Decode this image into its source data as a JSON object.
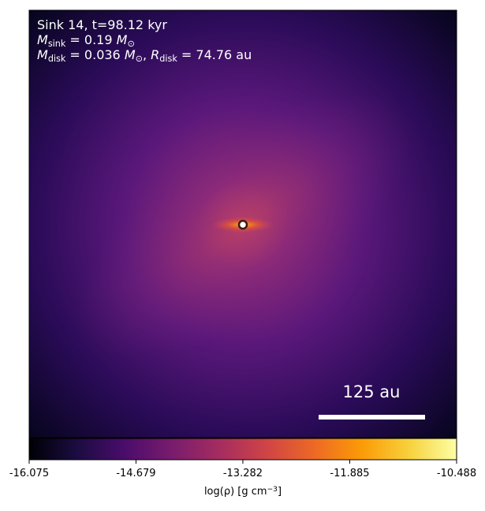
{
  "chart_data": {
    "type": "density_map",
    "annotations": [
      [
        {
          "text": "Sink 14, t=98.12 kyr"
        }
      ],
      [
        {
          "text": "M",
          "italic": true
        },
        {
          "text": "sink",
          "sub": true
        },
        {
          "text": " = 0.19 "
        },
        {
          "text": "M",
          "italic": true
        },
        {
          "text": "⊙",
          "sub": true
        }
      ],
      [
        {
          "text": "M",
          "italic": true
        },
        {
          "text": "disk",
          "sub": true
        },
        {
          "text": " = 0.036 "
        },
        {
          "text": "M",
          "italic": true
        },
        {
          "text": "⊙",
          "sub": true
        },
        {
          "text": ", "
        },
        {
          "text": "R",
          "italic": true
        },
        {
          "text": "disk",
          "sub": true
        },
        {
          "text": " = 74.76 au"
        }
      ]
    ],
    "scale_bar": {
      "label": "125 au"
    },
    "colorbar": {
      "label": [
        {
          "text": "log(ρ) [g cm"
        },
        {
          "text": "−3",
          "sup": true
        },
        {
          "text": "]"
        }
      ],
      "clim": [
        -16.075,
        -10.488
      ],
      "ticks": [
        -16.075,
        -14.679,
        -13.282,
        -11.885,
        -10.488
      ],
      "colormap": [
        "#000004",
        "#1b0c41",
        "#4a0c6b",
        "#781c6d",
        "#a52c60",
        "#cf4446",
        "#ed6925",
        "#fb9b06",
        "#f7d13d",
        "#fcffa4"
      ]
    }
  }
}
